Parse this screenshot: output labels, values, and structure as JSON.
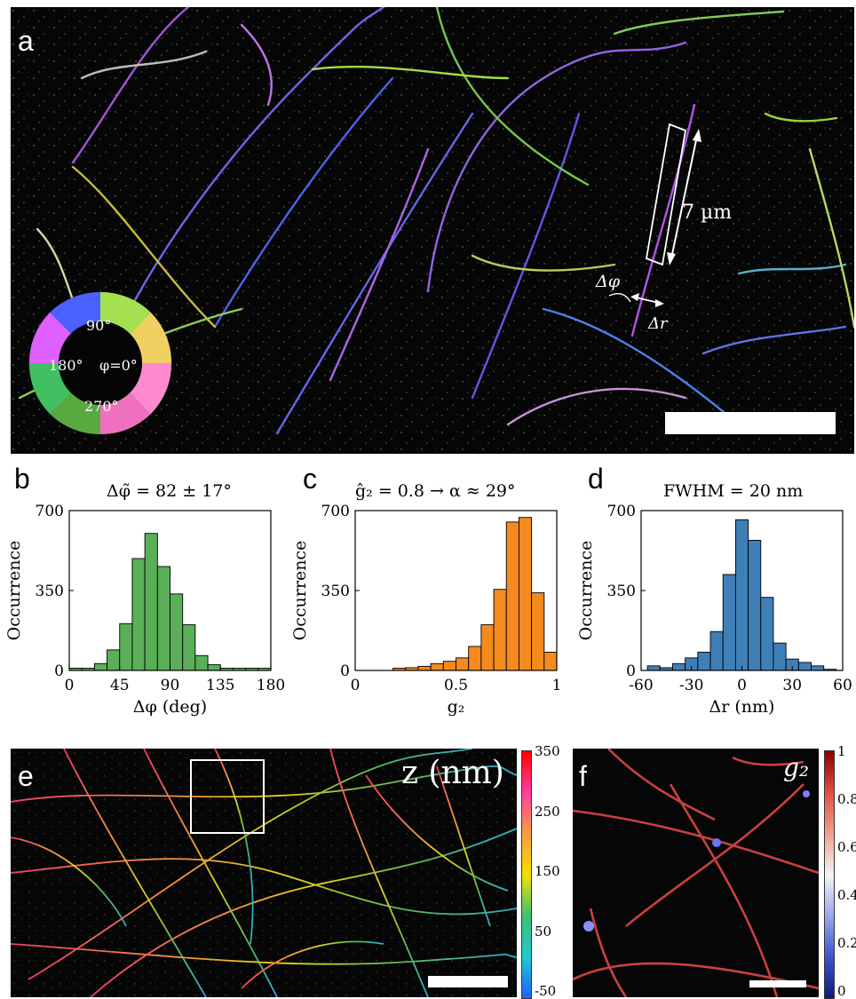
{
  "panel_a": {
    "letter": "a",
    "length_label": "7 µm",
    "delta_phi_label": "Δφ",
    "delta_r_label": "Δr",
    "wheel_labels": {
      "top": "90°",
      "left": "180°",
      "center": "φ=0°",
      "bottom": "270°"
    }
  },
  "panels_hist": [
    {
      "letter": "b",
      "title": "Δφ̃ = 82 ± 17°",
      "color": "#5aaf58"
    },
    {
      "letter": "c",
      "title": "ĝ₂ = 0.8 → α ≈ 29°",
      "color": "#f58a1f"
    },
    {
      "letter": "d",
      "title": "FWHM = 20 nm",
      "color": "#3f7fb8"
    }
  ],
  "chart_data": [
    {
      "type": "bar",
      "title": "Δφ̃ = 82 ± 17°",
      "xlabel": "Δφ (deg)",
      "ylabel": "Occurrence",
      "xlim": [
        0,
        180
      ],
      "ylim": [
        0,
        700
      ],
      "xticks": [
        "0",
        "45",
        "90",
        "135",
        "180"
      ],
      "yticks": [
        "0",
        "350",
        "700"
      ],
      "bin_width": 11.25,
      "bin_starts": [
        0,
        11.25,
        22.5,
        33.75,
        45,
        56.25,
        67.5,
        78.75,
        90,
        101.25,
        112.5,
        123.75,
        135,
        146.25,
        157.5,
        168.75
      ],
      "values": [
        10,
        10,
        30,
        90,
        205,
        490,
        600,
        455,
        335,
        200,
        65,
        25,
        10,
        10,
        10,
        10
      ]
    },
    {
      "type": "bar",
      "title": "ĝ₂ = 0.8 → α ≈ 29°",
      "xlabel": "g₂",
      "ylabel": "Occurrence",
      "xlim": [
        0,
        1
      ],
      "ylim": [
        0,
        700
      ],
      "xticks": [
        "0",
        "0.5",
        "1"
      ],
      "yticks": [
        "0",
        "350",
        "700"
      ],
      "bin_width": 0.0625,
      "bin_starts": [
        0.1875,
        0.25,
        0.3125,
        0.375,
        0.4375,
        0.5,
        0.5625,
        0.625,
        0.6875,
        0.75,
        0.8125,
        0.875,
        0.9375
      ],
      "values": [
        10,
        12,
        18,
        30,
        40,
        55,
        105,
        200,
        355,
        650,
        670,
        340,
        80
      ]
    },
    {
      "type": "bar",
      "title": "FWHM = 20 nm",
      "xlabel": "Δr (nm)",
      "ylabel": "Occurrence",
      "xlim": [
        -60,
        60
      ],
      "ylim": [
        0,
        700
      ],
      "xticks": [
        "-60",
        "-30",
        "0",
        "30",
        "60"
      ],
      "yticks": [
        "0",
        "350",
        "700"
      ],
      "bin_width": 7.5,
      "bin_starts": [
        -56.25,
        -48.75,
        -41.25,
        -33.75,
        -26.25,
        -18.75,
        -11.25,
        -3.75,
        3.75,
        11.25,
        18.75,
        26.25,
        33.75,
        41.25,
        48.75
      ],
      "values": [
        20,
        12,
        30,
        55,
        80,
        170,
        420,
        660,
        570,
        320,
        120,
        50,
        35,
        20,
        5
      ]
    }
  ],
  "panel_e": {
    "letter": "e",
    "label": "z (nm)",
    "colorbar_ticks": [
      "350",
      "250",
      "150",
      "50",
      "-50"
    ],
    "colorbar_colors": [
      "#ff0000",
      "#ff3fa0",
      "#ff9a40",
      "#f5e000",
      "#40c070",
      "#20c8d0",
      "#2060ff"
    ]
  },
  "panel_f": {
    "letter": "f",
    "label": "g₂",
    "colorbar_ticks": [
      "1",
      "0.8",
      "0.6",
      "0.4",
      "0.2",
      "0"
    ],
    "colorbar_colors": [
      "#8b0000",
      "#e05040",
      "#f0a090",
      "#f4f4f4",
      "#9aa8e8",
      "#3b55d0",
      "#101a7a"
    ]
  }
}
